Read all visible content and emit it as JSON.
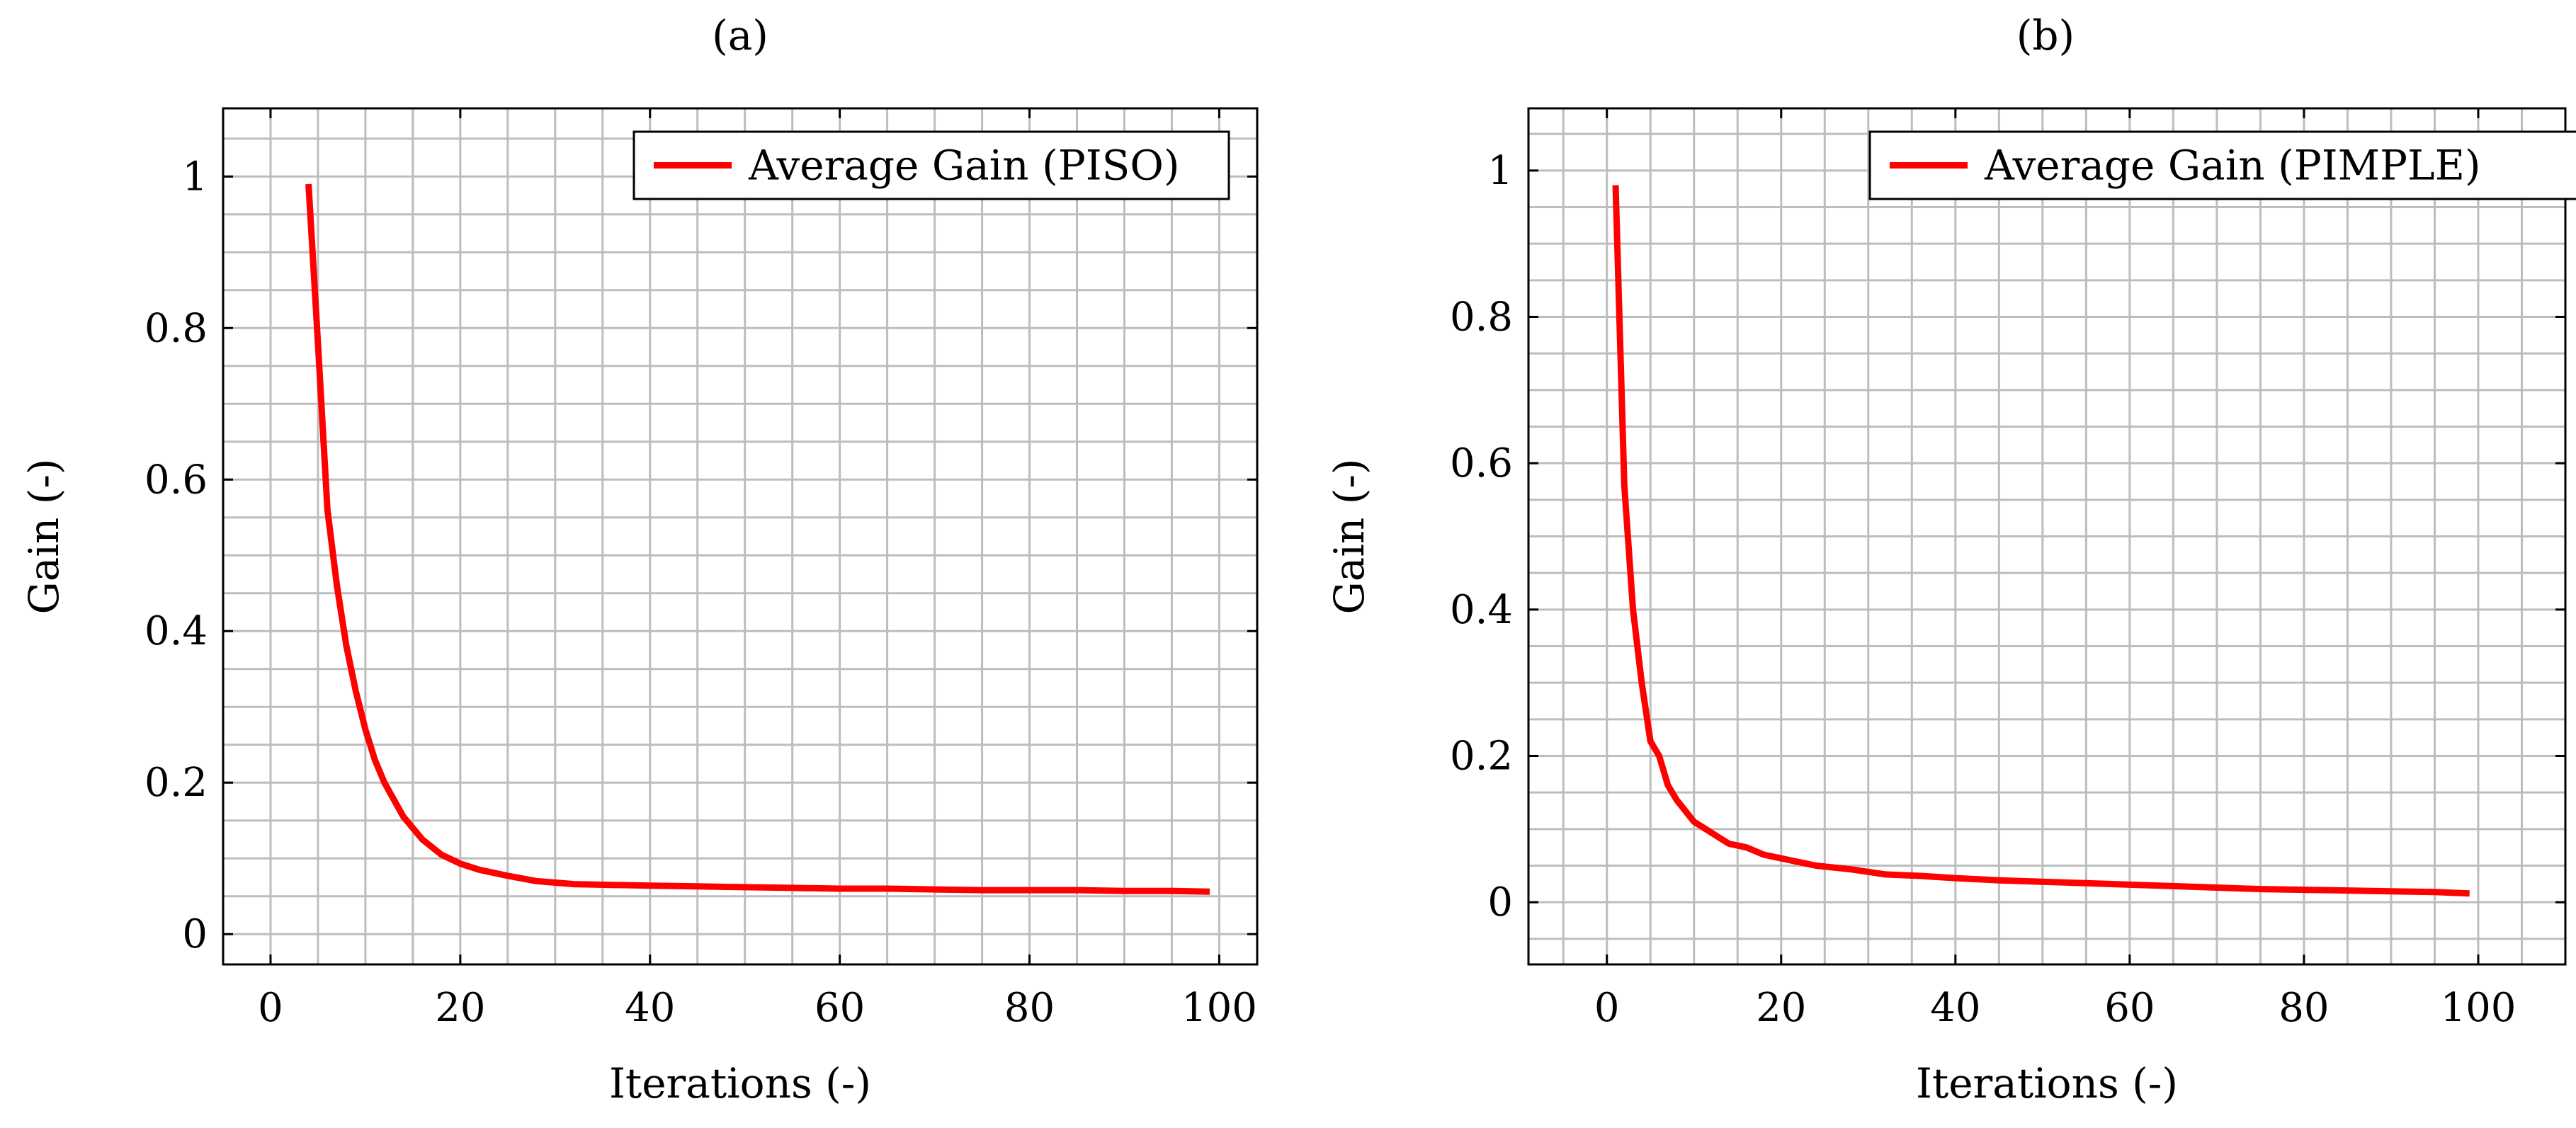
{
  "chart_data": [
    {
      "type": "line",
      "title": "(a)",
      "xlabel": "Iterations (-)",
      "ylabel": "Gain (-)",
      "xlim": [
        -5,
        104
      ],
      "ylim": [
        -0.04,
        1.09
      ],
      "xticks": [
        0,
        20,
        40,
        60,
        80,
        100
      ],
      "xtick_labels": [
        "0",
        "20",
        "40",
        "60",
        "80",
        "100"
      ],
      "yticks": [
        0,
        0.2,
        0.4,
        0.6,
        0.8,
        1
      ],
      "ytick_labels": [
        "0",
        "0.2",
        "0.4",
        "0.6",
        "0.8",
        "1"
      ],
      "grid": true,
      "legend_position": "top-right",
      "series": [
        {
          "name": "Average Gain (PISO)",
          "color": "#ff0000",
          "x": [
            4,
            5,
            6,
            7,
            8,
            9,
            10,
            11,
            12,
            14,
            16,
            18,
            20,
            22,
            25,
            28,
            32,
            36,
            40,
            45,
            50,
            55,
            60,
            65,
            70,
            75,
            80,
            85,
            90,
            95,
            99
          ],
          "y": [
            0.99,
            0.78,
            0.56,
            0.46,
            0.38,
            0.32,
            0.27,
            0.23,
            0.2,
            0.155,
            0.125,
            0.105,
            0.093,
            0.085,
            0.077,
            0.07,
            0.066,
            0.065,
            0.064,
            0.063,
            0.062,
            0.061,
            0.06,
            0.06,
            0.059,
            0.058,
            0.058,
            0.058,
            0.057,
            0.057,
            0.056
          ]
        }
      ]
    },
    {
      "type": "line",
      "title": "(b)",
      "xlabel": "Iterations (-)",
      "ylabel": "Gain (-)",
      "xlim": [
        -9,
        110
      ],
      "ylim": [
        -0.085,
        1.085
      ],
      "xticks": [
        0,
        20,
        40,
        60,
        80,
        100
      ],
      "xtick_labels": [
        "0",
        "20",
        "40",
        "60",
        "80",
        "100"
      ],
      "yticks": [
        0,
        0.2,
        0.4,
        0.6,
        0.8,
        1
      ],
      "ytick_labels": [
        "0",
        "0.2",
        "0.4",
        "0.6",
        "0.8",
        "1"
      ],
      "grid": true,
      "legend_position": "top-right",
      "series": [
        {
          "name": "Average Gain (PIMPLE)",
          "color": "#ff0000",
          "x": [
            1,
            2,
            3,
            4,
            5,
            6,
            7,
            8,
            10,
            12,
            14,
            16,
            18,
            20,
            24,
            28,
            32,
            36,
            40,
            45,
            50,
            55,
            60,
            65,
            70,
            75,
            80,
            85,
            90,
            95,
            99
          ],
          "y": [
            0.98,
            0.57,
            0.4,
            0.3,
            0.22,
            0.2,
            0.16,
            0.14,
            0.11,
            0.095,
            0.08,
            0.075,
            0.065,
            0.06,
            0.05,
            0.045,
            0.038,
            0.036,
            0.033,
            0.03,
            0.028,
            0.026,
            0.024,
            0.022,
            0.02,
            0.018,
            0.017,
            0.016,
            0.015,
            0.014,
            0.012
          ]
        }
      ]
    }
  ]
}
